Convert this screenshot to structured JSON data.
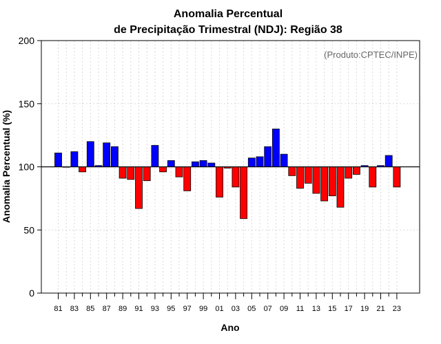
{
  "chart_data": {
    "type": "bar",
    "title_lines": [
      "Anomalia Percentual",
      "de Precipitação Trimestral (NDJ): Região 38"
    ],
    "xlabel": "Ano",
    "ylabel": "Anomalia Percentual (%)",
    "credit": "(Produto:CPTEC/INPE)",
    "ylim": [
      0,
      200
    ],
    "yticks": [
      0,
      50,
      100,
      150,
      200
    ],
    "reference_value": 100,
    "grid": true,
    "colors": {
      "above": "#0000ff",
      "below": "#ff0000"
    },
    "categories": [
      "81",
      "82",
      "83",
      "84",
      "85",
      "86",
      "87",
      "88",
      "89",
      "90",
      "91",
      "92",
      "93",
      "94",
      "95",
      "96",
      "97",
      "98",
      "99",
      "00",
      "01",
      "02",
      "03",
      "04",
      "05",
      "06",
      "07",
      "08",
      "09",
      "10",
      "11",
      "12",
      "13",
      "14",
      "15",
      "16",
      "17",
      "18",
      "19",
      "20",
      "21",
      "22",
      "23"
    ],
    "xtick_labels": [
      "81",
      "83",
      "85",
      "87",
      "89",
      "91",
      "93",
      "95",
      "97",
      "99",
      "01",
      "03",
      "05",
      "07",
      "09",
      "11",
      "13",
      "15",
      "17",
      "19",
      "21",
      "23"
    ],
    "values": [
      111,
      100,
      112,
      96,
      120,
      101,
      119,
      116,
      91,
      90,
      67,
      89,
      117,
      96,
      105,
      92,
      81,
      104,
      105,
      103,
      76,
      99,
      84,
      59,
      107,
      108,
      116,
      130,
      110,
      93,
      83,
      87,
      79,
      73,
      77,
      68,
      91,
      94,
      101,
      84,
      101,
      109,
      84
    ]
  }
}
